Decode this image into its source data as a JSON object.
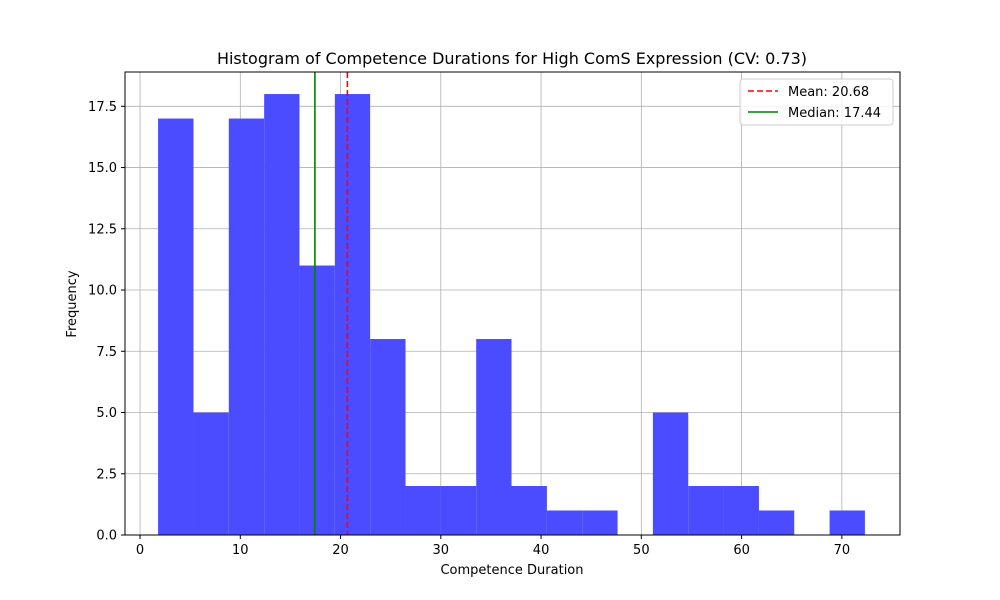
{
  "chart_data": {
    "type": "bar",
    "title": "Histogram of Competence Durations for High ComS Expression (CV: 0.73)",
    "xlabel": "Competence Duration",
    "ylabel": "Frequency",
    "xlim": [
      -1.5,
      75.8
    ],
    "ylim": [
      0,
      18.9
    ],
    "xticks": [
      0,
      10,
      20,
      30,
      40,
      50,
      60,
      70
    ],
    "yticks": [
      0.0,
      2.5,
      5.0,
      7.5,
      10.0,
      12.5,
      15.0,
      17.5
    ],
    "xtick_labels": [
      "0",
      "10",
      "20",
      "30",
      "40",
      "50",
      "60",
      "70"
    ],
    "ytick_labels": [
      "0.0",
      "2.5",
      "5.0",
      "7.5",
      "10.0",
      "12.5",
      "15.0",
      "17.5"
    ],
    "grid": true,
    "bar_color": "#4b4bff",
    "bins": [
      {
        "x0": 1.8,
        "x1": 5.33,
        "count": 17
      },
      {
        "x0": 5.33,
        "x1": 8.85,
        "count": 5
      },
      {
        "x0": 8.85,
        "x1": 12.38,
        "count": 17
      },
      {
        "x0": 12.38,
        "x1": 15.9,
        "count": 18
      },
      {
        "x0": 15.9,
        "x1": 19.43,
        "count": 11
      },
      {
        "x0": 19.43,
        "x1": 22.95,
        "count": 18
      },
      {
        "x0": 22.95,
        "x1": 26.48,
        "count": 8
      },
      {
        "x0": 26.48,
        "x1": 30.0,
        "count": 2
      },
      {
        "x0": 30.0,
        "x1": 33.53,
        "count": 2
      },
      {
        "x0": 33.53,
        "x1": 37.05,
        "count": 8
      },
      {
        "x0": 37.05,
        "x1": 40.58,
        "count": 2
      },
      {
        "x0": 40.58,
        "x1": 44.1,
        "count": 1
      },
      {
        "x0": 44.1,
        "x1": 47.63,
        "count": 1
      },
      {
        "x0": 47.63,
        "x1": 51.15,
        "count": 0
      },
      {
        "x0": 51.15,
        "x1": 54.68,
        "count": 5
      },
      {
        "x0": 54.68,
        "x1": 58.2,
        "count": 2
      },
      {
        "x0": 58.2,
        "x1": 61.73,
        "count": 2
      },
      {
        "x0": 61.73,
        "x1": 65.25,
        "count": 1
      },
      {
        "x0": 65.25,
        "x1": 68.78,
        "count": 0
      },
      {
        "x0": 68.78,
        "x1": 72.3,
        "count": 1
      }
    ],
    "reference_lines": [
      {
        "name": "Mean: 20.68",
        "x": 20.68,
        "color": "#ff0000",
        "style": "dashed"
      },
      {
        "name": "Median: 17.44",
        "x": 17.44,
        "color": "#008000",
        "style": "solid"
      }
    ],
    "legend_placement": "top-right"
  }
}
